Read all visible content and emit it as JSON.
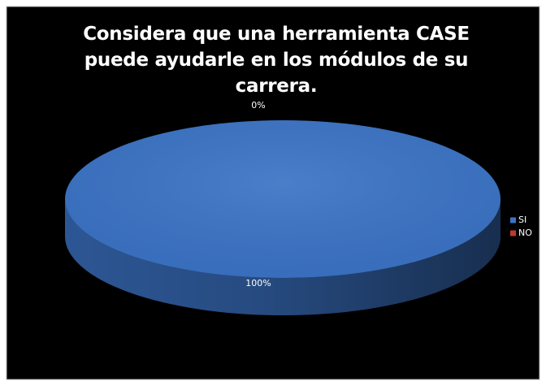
{
  "chart_data": {
    "type": "pie",
    "title": "Considera que una herramienta CASE puede ayudarle en los módulos de su carrera.",
    "categories": [
      "SI",
      "NO"
    ],
    "values": [
      100,
      0
    ],
    "value_labels": [
      "100%",
      "0%"
    ],
    "colors": [
      "#3b73c5",
      "#c0392b"
    ],
    "legend": "right"
  }
}
